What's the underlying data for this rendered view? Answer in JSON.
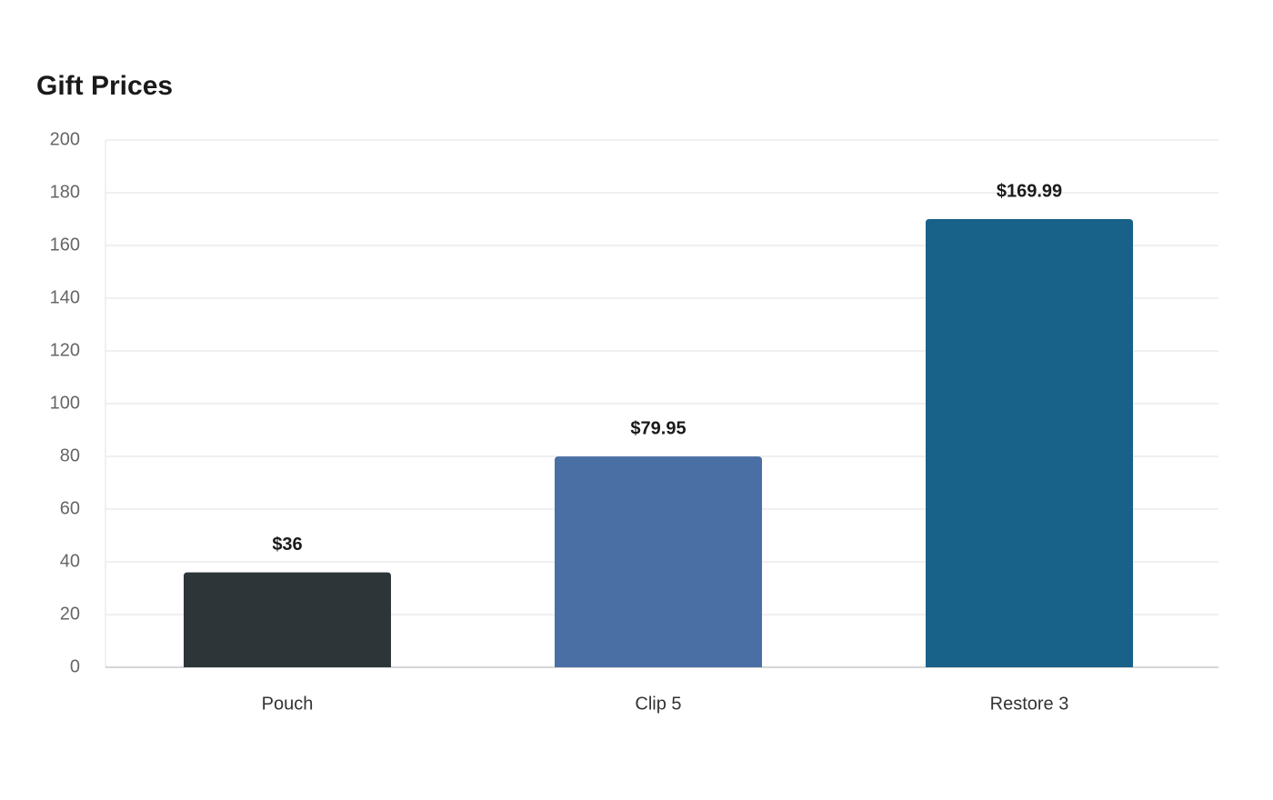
{
  "chart_data": {
    "type": "bar",
    "title": "Gift Prices",
    "categories": [
      "Pouch",
      "Clip 5",
      "Restore 3"
    ],
    "values": [
      36,
      79.95,
      169.99
    ],
    "value_labels": [
      "$36",
      "$79.95",
      "$169.99"
    ],
    "colors": [
      "#2e3538",
      "#4a6fa5",
      "#186188"
    ],
    "ylim": [
      0,
      200
    ],
    "yticks": [
      0,
      20,
      40,
      60,
      80,
      100,
      120,
      140,
      160,
      180,
      200
    ],
    "grid": true
  }
}
